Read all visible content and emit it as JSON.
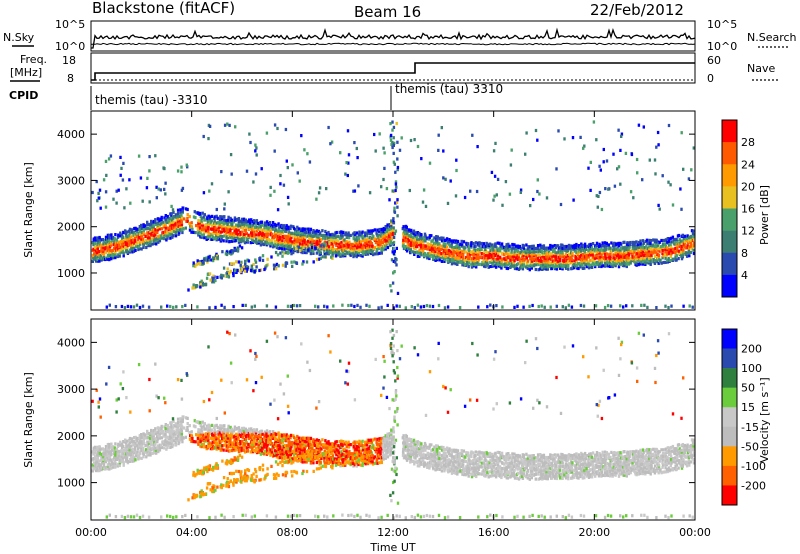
{
  "header": {
    "station": "Blackstone (fitACF)",
    "beam": "Beam 16",
    "date": "22/Feb/2012"
  },
  "left_labels": {
    "nsky": "N.Sky",
    "freq_line1": "Freq.",
    "freq_line2": "[MHz]",
    "cpid": "CPID"
  },
  "right_labels": {
    "nsearch": "N.Search",
    "nave": "Nave"
  },
  "panel_axes": {
    "noise_left": [
      "10^5",
      "10^0"
    ],
    "noise_right": [
      "10^5",
      "10^0"
    ],
    "freq_left": [
      "18",
      "8"
    ],
    "nave_right": [
      "60",
      "0"
    ]
  },
  "cpid_labels": [
    "themis (tau) -3310",
    "themis (tau) 3310"
  ],
  "colors": {
    "power": [
      "#0000ff",
      "#2a4ab0",
      "#3c7f72",
      "#4aa06a",
      "#e8c020",
      "#ff9a00",
      "#ff5a00",
      "#ff0000"
    ],
    "velocity": [
      "#ff0000",
      "#ff6000",
      "#ff9a00",
      "#bdbdbd",
      "#c8c8c8",
      "#6ccd3c",
      "#2f7f3f",
      "#2a4ab0",
      "#0000ff"
    ]
  },
  "chart_data": [
    {
      "type": "heatmap",
      "title": "",
      "xlabel": "",
      "ylabel": "Slant Range [km]",
      "xlim": [
        0,
        24
      ],
      "ylim": [
        200,
        4500
      ],
      "yticks": [
        "4000",
        "3000",
        "2000",
        "1000"
      ],
      "colorbar_label": "Power [dB]",
      "colorbar_ticks": [
        "28",
        "24",
        "20",
        "16",
        "12",
        "8",
        "4"
      ],
      "colorbar_range": [
        0,
        32
      ],
      "echo_band": {
        "x_hours": [
          0,
          1,
          2,
          3,
          3.8,
          4.5,
          5.5,
          6.5,
          7.5,
          8.5,
          9.5,
          10.5,
          11.5,
          12,
          12.8,
          14,
          15,
          16,
          17,
          18,
          19,
          20,
          21,
          22,
          23,
          24
        ],
        "center_km": [
          1500,
          1600,
          1800,
          2000,
          2200,
          2000,
          1950,
          1900,
          1800,
          1700,
          1650,
          1620,
          1700,
          1900,
          1650,
          1500,
          1400,
          1400,
          1350,
          1350,
          1350,
          1400,
          1400,
          1450,
          1500,
          1700
        ]
      }
    },
    {
      "type": "heatmap",
      "title": "",
      "xlabel": "Time UT",
      "ylabel": "Slant Range [km]",
      "xlim": [
        0,
        24
      ],
      "ylim": [
        200,
        4500
      ],
      "yticks": [
        "4000",
        "3000",
        "2000",
        "1000"
      ],
      "xticks": [
        "00:00",
        "04:00",
        "08:00",
        "12:00",
        "16:00",
        "20:00",
        "00:00"
      ],
      "colorbar_label": "Velocity [m s⁻¹]",
      "colorbar_ticks": [
        "200",
        "100",
        "50",
        "15",
        "-15",
        "-50",
        "-100",
        "-200"
      ],
      "colorbar_range": [
        -250,
        250
      ]
    }
  ]
}
